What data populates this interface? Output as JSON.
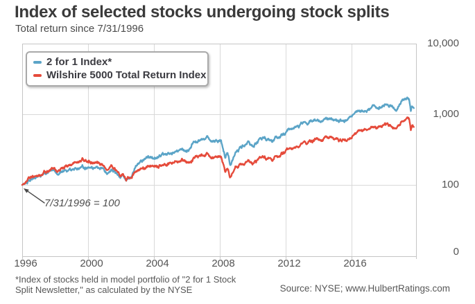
{
  "header": {
    "title": "Index of selected stocks undergoing stock splits",
    "subtitle": "Total return since 7/31/1996"
  },
  "legend": {
    "items": [
      {
        "label": "2 for 1 Index*",
        "color": "#5ba4c7"
      },
      {
        "label": "Wilshire 5000 Total Return Index",
        "color": "#e54b3b"
      }
    ]
  },
  "annotation": {
    "text": "7/31/1996 = 100"
  },
  "footnote": {
    "line1": "*Index of stocks held in model portfolio of \"2 for 1 Stock",
    "line2": "Split Newsletter,\" as calculated by the NYSE"
  },
  "source": {
    "text": "Source: NYSE; www.HulbertRatings.com"
  },
  "colors": {
    "blue_line": "#5ba4c7",
    "red_line": "#e54b3b",
    "gridline": "#d9d9d9",
    "axis_border": "#c5c5c5",
    "arrow": "#4b4b4b",
    "title_text": "#3a3a3a",
    "tick_text": "#545454"
  },
  "chart_data": {
    "type": "line",
    "title": "Index of selected stocks undergoing stock splits",
    "subtitle": "Total return since 7/31/1996",
    "legend_position": "top-left",
    "grid": true,
    "base_note": "7/31/1996 = 100",
    "x_axis": {
      "tick_years": [
        1996,
        2000,
        2004,
        2008,
        2012,
        2016
      ],
      "labels": [
        "1996",
        "2000",
        "2004",
        "2008",
        "2012",
        "2016"
      ],
      "range": [
        1996.58,
        2020.45
      ],
      "note": "ticks anchored at 7/31 of each labeled year"
    },
    "y_axis": {
      "scale": "log",
      "tick_values": [
        10000,
        1000,
        100,
        0
      ],
      "labels": [
        "10,000",
        "1,000",
        "100",
        "0"
      ],
      "side": "right"
    },
    "series": [
      {
        "name": "2 for 1 Index*",
        "color": "#5ba4c7",
        "points": [
          [
            1996.58,
            100
          ],
          [
            1996.8,
            108
          ],
          [
            1997.0,
            116
          ],
          [
            1997.3,
            124
          ],
          [
            1997.6,
            136
          ],
          [
            1997.8,
            133
          ],
          [
            1998.0,
            148
          ],
          [
            1998.35,
            157
          ],
          [
            1998.55,
            163
          ],
          [
            1998.72,
            140
          ],
          [
            1999.0,
            157
          ],
          [
            1999.5,
            163
          ],
          [
            2000.0,
            172
          ],
          [
            2000.25,
            184
          ],
          [
            2000.5,
            175
          ],
          [
            2000.8,
            169
          ],
          [
            2001.0,
            167
          ],
          [
            2001.2,
            178
          ],
          [
            2001.55,
            160
          ],
          [
            2001.72,
            142
          ],
          [
            2002.0,
            162
          ],
          [
            2002.3,
            150
          ],
          [
            2002.55,
            122
          ],
          [
            2002.72,
            130
          ],
          [
            2002.9,
            116
          ],
          [
            2003.0,
            121
          ],
          [
            2003.3,
            152
          ],
          [
            2003.65,
            205
          ],
          [
            2004.0,
            230
          ],
          [
            2004.5,
            241
          ],
          [
            2005.0,
            264
          ],
          [
            2005.5,
            276
          ],
          [
            2006.0,
            304
          ],
          [
            2006.3,
            318
          ],
          [
            2006.55,
            299
          ],
          [
            2007.0,
            418
          ],
          [
            2007.5,
            448
          ],
          [
            2007.8,
            474
          ],
          [
            2008.1,
            430
          ],
          [
            2008.4,
            446
          ],
          [
            2008.66,
            415
          ],
          [
            2008.8,
            298
          ],
          [
            2008.9,
            248
          ],
          [
            2009.05,
            283
          ],
          [
            2009.2,
            200
          ],
          [
            2009.35,
            242
          ],
          [
            2009.5,
            298
          ],
          [
            2009.8,
            342
          ],
          [
            2010.0,
            368
          ],
          [
            2010.35,
            398
          ],
          [
            2010.55,
            345
          ],
          [
            2011.0,
            428
          ],
          [
            2011.3,
            458
          ],
          [
            2011.6,
            418
          ],
          [
            2011.78,
            382
          ],
          [
            2012.0,
            468
          ],
          [
            2012.58,
            545
          ],
          [
            2013.0,
            622
          ],
          [
            2013.5,
            700
          ],
          [
            2014.0,
            768
          ],
          [
            2014.5,
            818
          ],
          [
            2015.0,
            852
          ],
          [
            2015.3,
            878
          ],
          [
            2015.62,
            778
          ],
          [
            2015.9,
            828
          ],
          [
            2016.12,
            792
          ],
          [
            2016.6,
            1000
          ],
          [
            2017.0,
            1082
          ],
          [
            2017.5,
            1158
          ],
          [
            2018.0,
            1278
          ],
          [
            2018.15,
            1152
          ],
          [
            2018.5,
            1292
          ],
          [
            2018.75,
            1360
          ],
          [
            2019.05,
            1282
          ],
          [
            2019.3,
            1118
          ],
          [
            2019.6,
            1398
          ],
          [
            2019.95,
            1675
          ],
          [
            2020.08,
            1600
          ],
          [
            2020.18,
            1120
          ],
          [
            2020.28,
            1315
          ],
          [
            2020.37,
            1252
          ]
        ]
      },
      {
        "name": "Wilshire 5000 Total Return Index",
        "color": "#e54b3b",
        "points": [
          [
            1996.58,
            100
          ],
          [
            1996.8,
            110
          ],
          [
            1997.0,
            120
          ],
          [
            1997.3,
            128
          ],
          [
            1997.6,
            141
          ],
          [
            1997.8,
            138
          ],
          [
            1998.0,
            152
          ],
          [
            1998.35,
            164
          ],
          [
            1998.55,
            169
          ],
          [
            1998.72,
            146
          ],
          [
            1999.0,
            172
          ],
          [
            1999.5,
            196
          ],
          [
            2000.0,
            215
          ],
          [
            2000.25,
            229
          ],
          [
            2000.5,
            215
          ],
          [
            2000.8,
            204
          ],
          [
            2001.0,
            197
          ],
          [
            2001.2,
            209
          ],
          [
            2001.55,
            184
          ],
          [
            2001.72,
            161
          ],
          [
            2002.0,
            181
          ],
          [
            2002.3,
            166
          ],
          [
            2002.55,
            131
          ],
          [
            2002.72,
            139
          ],
          [
            2002.9,
            122
          ],
          [
            2003.0,
            127
          ],
          [
            2003.3,
            143
          ],
          [
            2003.65,
            159
          ],
          [
            2004.0,
            172
          ],
          [
            2004.5,
            181
          ],
          [
            2005.0,
            192
          ],
          [
            2005.5,
            201
          ],
          [
            2006.0,
            216
          ],
          [
            2006.3,
            223
          ],
          [
            2006.55,
            213
          ],
          [
            2007.0,
            251
          ],
          [
            2007.5,
            266
          ],
          [
            2007.8,
            278
          ],
          [
            2008.1,
            256
          ],
          [
            2008.4,
            263
          ],
          [
            2008.66,
            249
          ],
          [
            2008.8,
            186
          ],
          [
            2008.9,
            153
          ],
          [
            2009.05,
            171
          ],
          [
            2009.2,
            133
          ],
          [
            2009.35,
            156
          ],
          [
            2009.5,
            184
          ],
          [
            2009.8,
            198
          ],
          [
            2010.0,
            207
          ],
          [
            2010.35,
            219
          ],
          [
            2010.55,
            196
          ],
          [
            2011.0,
            237
          ],
          [
            2011.3,
            248
          ],
          [
            2011.6,
            229
          ],
          [
            2011.78,
            212
          ],
          [
            2012.0,
            252
          ],
          [
            2012.58,
            289
          ],
          [
            2013.0,
            326
          ],
          [
            2013.5,
            368
          ],
          [
            2014.0,
            407
          ],
          [
            2014.5,
            437
          ],
          [
            2015.0,
            461
          ],
          [
            2015.3,
            472
          ],
          [
            2015.62,
            421
          ],
          [
            2015.9,
            446
          ],
          [
            2016.12,
            431
          ],
          [
            2016.6,
            509
          ],
          [
            2017.0,
            566
          ],
          [
            2017.5,
            611
          ],
          [
            2018.0,
            678
          ],
          [
            2018.15,
            624
          ],
          [
            2018.5,
            692
          ],
          [
            2018.75,
            724
          ],
          [
            2019.05,
            678
          ],
          [
            2019.3,
            601
          ],
          [
            2019.6,
            738
          ],
          [
            2019.95,
            866
          ],
          [
            2020.08,
            828
          ],
          [
            2020.18,
            592
          ],
          [
            2020.28,
            702
          ],
          [
            2020.37,
            664
          ]
        ]
      }
    ],
    "annotation": {
      "text": "7/31/1996 = 100",
      "points_to": [
        1996.58,
        100
      ]
    }
  }
}
